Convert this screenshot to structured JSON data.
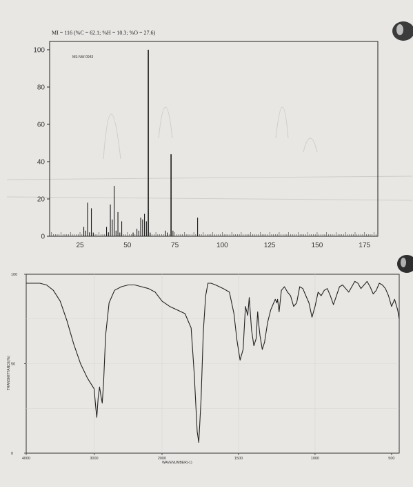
{
  "chart_data": [
    {
      "type": "bar",
      "title": "MI = 116 (%C = 62.1; %H = 10.3; %O = 27.6)",
      "code": "MS-NW-0943",
      "xticks": [
        25,
        50,
        75,
        100,
        125,
        150,
        175
      ],
      "yticks": [
        0,
        20,
        40,
        60,
        80,
        100
      ],
      "xlim": [
        9,
        182
      ],
      "ylim": [
        0,
        100
      ],
      "peaks": [
        {
          "x": 27,
          "y": 5
        },
        {
          "x": 28,
          "y": 3
        },
        {
          "x": 29,
          "y": 18
        },
        {
          "x": 30,
          "y": 2
        },
        {
          "x": 31,
          "y": 15
        },
        {
          "x": 32,
          "y": 2
        },
        {
          "x": 39,
          "y": 5
        },
        {
          "x": 40,
          "y": 2
        },
        {
          "x": 41,
          "y": 17
        },
        {
          "x": 42,
          "y": 9
        },
        {
          "x": 43,
          "y": 27
        },
        {
          "x": 44,
          "y": 3
        },
        {
          "x": 45,
          "y": 13
        },
        {
          "x": 46,
          "y": 2
        },
        {
          "x": 47,
          "y": 8
        },
        {
          "x": 53,
          "y": 2
        },
        {
          "x": 55,
          "y": 4
        },
        {
          "x": 56,
          "y": 3
        },
        {
          "x": 57,
          "y": 10
        },
        {
          "x": 58,
          "y": 9
        },
        {
          "x": 59,
          "y": 12
        },
        {
          "x": 60,
          "y": 8
        },
        {
          "x": 61,
          "y": 100
        },
        {
          "x": 62,
          "y": 2
        },
        {
          "x": 70,
          "y": 3
        },
        {
          "x": 71,
          "y": 2
        },
        {
          "x": 73,
          "y": 44
        },
        {
          "x": 74,
          "y": 3
        },
        {
          "x": 87,
          "y": 10
        }
      ]
    },
    {
      "type": "line",
      "xlabel": "WAVENUMBER(-1)",
      "ylabel": "TRANSMITTANCE(%)",
      "xticks": [
        4000,
        3000,
        2000,
        1500,
        1000,
        500
      ],
      "yticks": [
        0,
        50,
        100
      ],
      "ylim": [
        0,
        100
      ],
      "x": [
        4000,
        3900,
        3800,
        3700,
        3600,
        3500,
        3400,
        3300,
        3200,
        3100,
        3000,
        2975,
        2960,
        2940,
        2920,
        2900,
        2880,
        2860,
        2830,
        2780,
        2700,
        2600,
        2500,
        2400,
        2300,
        2200,
        2100,
        2000,
        1950,
        1900,
        1850,
        1810,
        1790,
        1770,
        1760,
        1745,
        1730,
        1715,
        1700,
        1680,
        1650,
        1600,
        1560,
        1530,
        1510,
        1490,
        1470,
        1455,
        1440,
        1430,
        1415,
        1400,
        1385,
        1375,
        1368,
        1360,
        1345,
        1330,
        1310,
        1290,
        1270,
        1260,
        1250,
        1245,
        1235,
        1220,
        1200,
        1180,
        1160,
        1140,
        1120,
        1100,
        1080,
        1060,
        1040,
        1030,
        1020,
        1000,
        980,
        960,
        940,
        920,
        900,
        880,
        860,
        840,
        820,
        800,
        780,
        760,
        740,
        720,
        700,
        680,
        660,
        640,
        620,
        600,
        580,
        560,
        540,
        520,
        500,
        480,
        460,
        450
      ],
      "y": [
        95,
        95,
        95,
        94,
        91,
        85,
        74,
        61,
        50,
        42,
        36,
        25,
        20,
        31,
        37,
        32,
        28,
        40,
        66,
        84,
        91,
        93,
        94,
        94,
        93,
        92,
        90,
        85,
        82,
        80,
        78,
        70,
        45,
        12,
        6,
        30,
        68,
        88,
        95,
        95,
        94,
        92,
        90,
        78,
        63,
        52,
        58,
        82,
        77,
        87,
        69,
        60,
        64,
        79,
        72,
        66,
        58,
        62,
        73,
        80,
        84,
        86,
        84,
        86,
        79,
        91,
        93,
        90,
        88,
        82,
        84,
        93,
        92,
        88,
        84,
        80,
        76,
        82,
        90,
        88,
        91,
        92,
        88,
        83,
        88,
        93,
        94,
        92,
        90,
        93,
        96,
        95,
        92,
        94,
        96,
        93,
        89,
        91,
        95,
        94,
        92,
        88,
        82,
        86,
        80,
        75
      ]
    }
  ]
}
